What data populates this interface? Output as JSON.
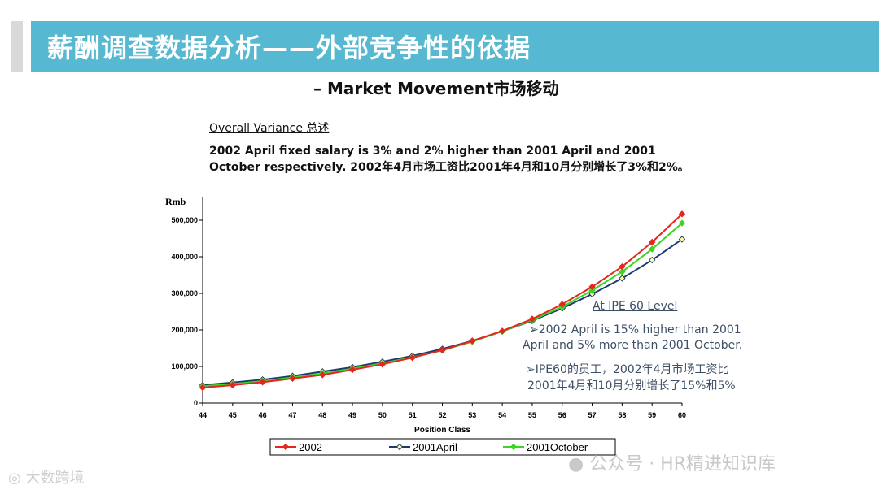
{
  "header": {
    "title": "薪酬调查数据分析——外部竞争性的依据",
    "subtitle": "– Market Movement市场移动"
  },
  "overall": {
    "heading": "Overall Variance 总述",
    "text": "2002 April fixed salary is 3% and 2% higher than 2001 April and 2001 October respectively. 2002年4月市场工资比2001年4月和10月分别增长了3%和2%。"
  },
  "annotation": {
    "heading": "At IPE 60 Level",
    "en_line1": "➢2002 April is 15% higher than 2001",
    "en_line2": "April and 5% more than 2001 October.",
    "cn_line1": "➢IPE60的员工，2002年4月市场工资比",
    "cn_line2": "2001年4月和10月分别增长了15%和5%"
  },
  "watermark": {
    "right": "公众号 · HR精进知识库",
    "left": "大数跨境"
  },
  "colors": {
    "series_2002": "#e8241e",
    "series_2001april": "#1c3a6e",
    "series_2001october": "#39d622",
    "title_bar": "#57b8d1"
  },
  "chart_data": {
    "type": "line",
    "title": "",
    "xlabel": "Position Class",
    "ylabel": "Rmb",
    "x": [
      44,
      45,
      46,
      47,
      48,
      49,
      50,
      51,
      52,
      53,
      54,
      55,
      56,
      57,
      58,
      59,
      60
    ],
    "ylim": [
      0,
      525000
    ],
    "yticks": [
      0,
      100000,
      200000,
      300000,
      400000,
      500000
    ],
    "ytick_labels": [
      "0",
      "100,000",
      "200,000",
      "300,000",
      "400,000",
      "500,000"
    ],
    "series": [
      {
        "name": "2002",
        "color": "#e8241e",
        "marker": "diamond-filled",
        "values": [
          42000,
          49000,
          57000,
          67000,
          77000,
          91000,
          106000,
          124000,
          145000,
          170000,
          197000,
          230000,
          270000,
          318000,
          373000,
          440000,
          517000
        ]
      },
      {
        "name": "2001April",
        "color": "#1c3a6e",
        "marker": "diamond-open",
        "values": [
          49000,
          56000,
          64000,
          74000,
          86000,
          98000,
          113000,
          129000,
          148000,
          170000,
          196000,
          225000,
          259000,
          298000,
          341000,
          391000,
          448000
        ]
      },
      {
        "name": "2001October",
        "color": "#39d622",
        "marker": "diamond-filled",
        "values": [
          46000,
          52000,
          60000,
          70000,
          81000,
          94000,
          108000,
          125000,
          144000,
          168000,
          196000,
          227000,
          263000,
          308000,
          359000,
          421000,
          492000
        ]
      }
    ],
    "legend_position": "bottom-center"
  }
}
